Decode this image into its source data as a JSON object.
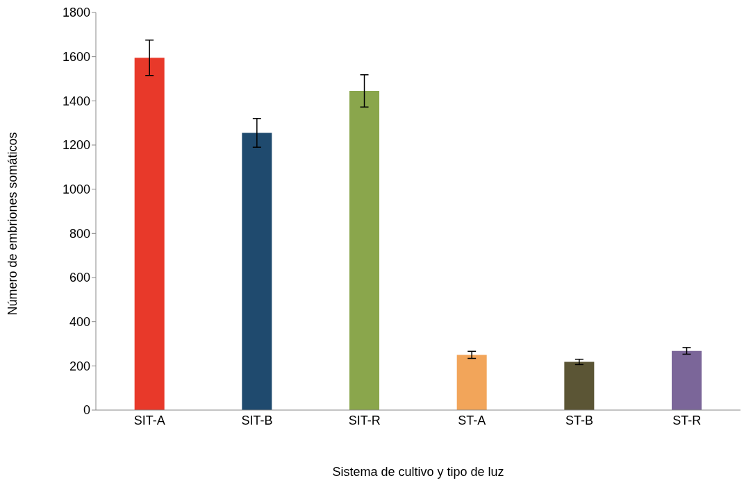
{
  "chart_data": {
    "type": "bar",
    "xlabel": "Sistema de cultivo y tipo de luz",
    "ylabel": "Número de embriones somáticos",
    "categories": [
      "SIT-A",
      "SIT-B",
      "SIT-R",
      "ST-A",
      "ST-B",
      "ST-R"
    ],
    "values": [
      1595,
      1255,
      1445,
      250,
      218,
      268
    ],
    "errors": [
      80,
      65,
      73,
      16,
      12,
      15
    ],
    "colors": [
      "#e8392a",
      "#1f4a6e",
      "#8aa64c",
      "#f2a55a",
      "#5b5535",
      "#7b6699"
    ],
    "ylim": [
      0,
      1800
    ],
    "yticks": [
      0,
      200,
      400,
      600,
      800,
      1000,
      1200,
      1400,
      1600,
      1800
    ],
    "grid": false,
    "legend": false
  }
}
